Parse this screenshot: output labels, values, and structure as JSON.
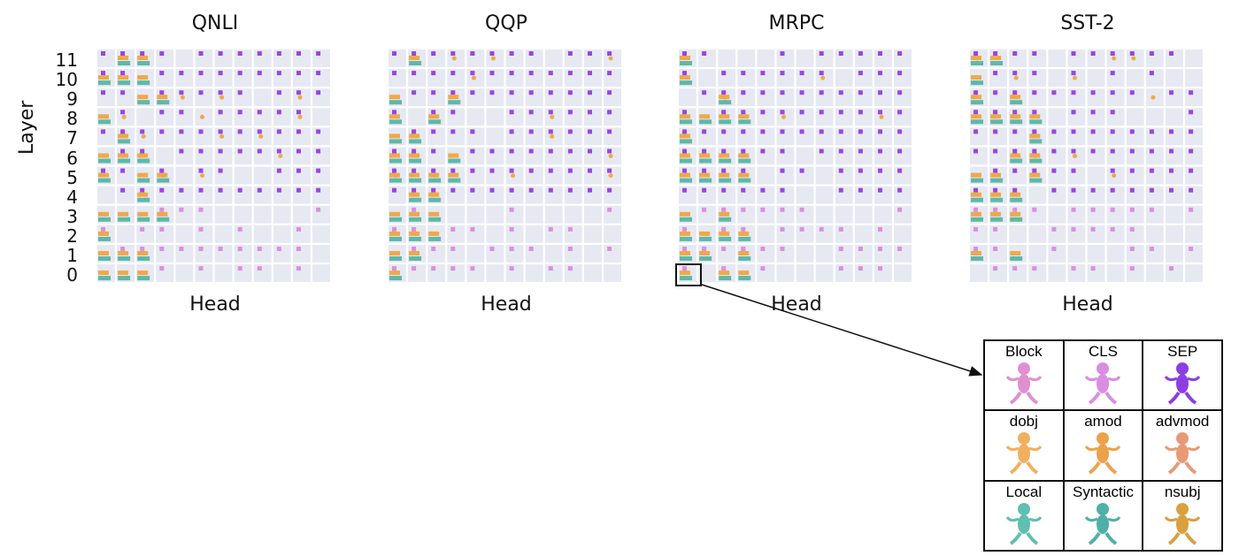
{
  "chart_data": [
    {
      "type": "heatmap",
      "title": "QNLI",
      "xlabel": "Head",
      "ylabel": "Layer",
      "y_ticks": [
        "0",
        "1",
        "2",
        "3",
        "4",
        "5",
        "6",
        "7",
        "8",
        "9",
        "10",
        "11"
      ],
      "rows": 12,
      "cols": 12
    },
    {
      "type": "heatmap",
      "title": "QQP",
      "xlabel": "Head",
      "ylabel": "",
      "rows": 12,
      "cols": 12
    },
    {
      "type": "heatmap",
      "title": "MRPC",
      "xlabel": "Head",
      "ylabel": "",
      "rows": 12,
      "cols": 12
    },
    {
      "type": "heatmap",
      "title": "SST-2",
      "xlabel": "Head",
      "ylabel": "",
      "rows": 12,
      "cols": 12
    }
  ],
  "legend": {
    "items": [
      {
        "label": "Block",
        "color": "#e08fd0"
      },
      {
        "label": "CLS",
        "color": "#d98ee0"
      },
      {
        "label": "SEP",
        "color": "#8b3fe0"
      },
      {
        "label": "dobj",
        "color": "#f0b060"
      },
      {
        "label": "amod",
        "color": "#eca24a"
      },
      {
        "label": "advmod",
        "color": "#e89a78"
      },
      {
        "label": "Local",
        "color": "#5fbfb0"
      },
      {
        "label": "Syntactic",
        "color": "#4fb0a8"
      },
      {
        "label": "nsubj",
        "color": "#d9a040"
      }
    ]
  },
  "colors": {
    "cell_bg": "#e6e9f2",
    "sep": "#9a45e0",
    "cls": "#dc8fe0",
    "block": "#e38ed3",
    "orange": "#f0a848",
    "teal": "#5fb8a8"
  }
}
